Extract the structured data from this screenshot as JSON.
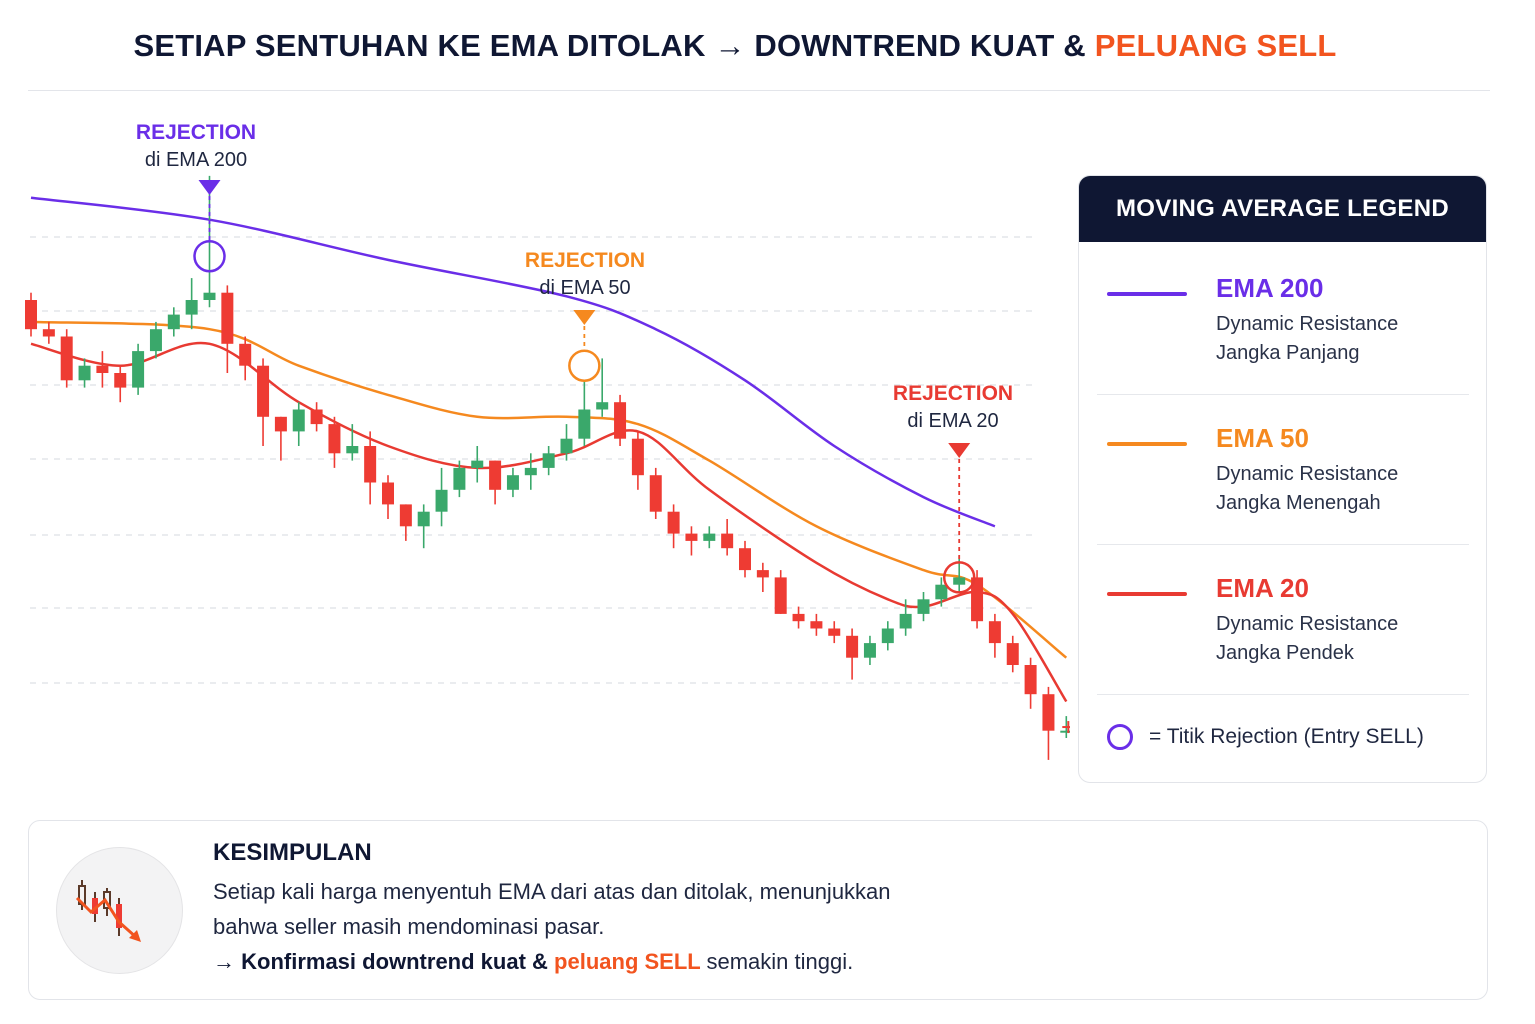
{
  "header": {
    "title_main": "SETIAP SENTUHAN KE EMA DITOLAK → DOWNTREND KUAT &",
    "title_accent": "PELUANG SELL"
  },
  "colors": {
    "ema200": "#6a2ee8",
    "ema50": "#f5891f",
    "ema20": "#e83a32",
    "bull": "#3aa86b",
    "bear": "#ee3b33",
    "accent": "#f2541f",
    "navy": "#0f1733"
  },
  "annotations": [
    {
      "head": "REJECTION",
      "sub": "di EMA 200",
      "color": "#6a2ee8"
    },
    {
      "head": "REJECTION",
      "sub": "di EMA 50",
      "color": "#f5891f"
    },
    {
      "head": "REJECTION",
      "sub": "di EMA 20",
      "color": "#e83a32"
    }
  ],
  "legend": {
    "title": "MOVING AVERAGE LEGEND",
    "items": [
      {
        "name": "EMA 200",
        "line1": "Dynamic Resistance",
        "line2": "Jangka Panjang",
        "color": "#6a2ee8"
      },
      {
        "name": "EMA 50",
        "line1": "Dynamic Resistance",
        "line2": "Jangka Menengah",
        "color": "#f5891f"
      },
      {
        "name": "EMA 20",
        "line1": "Dynamic Resistance",
        "line2": "Jangka Pendek",
        "color": "#e83a32"
      }
    ],
    "note": "= Titik Rejection (Entry SELL)"
  },
  "conclusion": {
    "title": "KESIMPULAN",
    "line1": "Setiap kali harga menyentuh EMA dari atas dan ditolak, menunjukkan",
    "line2": "bahwa seller masih mendominasi pasar.",
    "line3_prefix": "→ Konfirmasi downtrend kuat &",
    "line3_accent": "peluang SELL",
    "line3_suffix": "semakin tinggi."
  },
  "chart_data": {
    "type": "candlestick",
    "title": "",
    "grid": "horizontal dashed",
    "candles": [
      [
        100,
        96,
        101,
        95
      ],
      [
        96,
        95,
        97,
        94
      ],
      [
        95,
        89,
        96,
        88
      ],
      [
        89,
        91,
        92,
        88
      ],
      [
        91,
        90,
        93,
        88
      ],
      [
        90,
        88,
        91,
        86
      ],
      [
        88,
        93,
        94,
        87
      ],
      [
        93,
        96,
        97,
        92
      ],
      [
        96,
        98,
        99,
        95
      ],
      [
        98,
        100,
        103,
        96
      ],
      [
        100,
        101,
        117,
        99
      ],
      [
        101,
        94,
        102,
        90
      ],
      [
        94,
        91,
        95,
        89
      ],
      [
        91,
        84,
        92,
        80
      ],
      [
        84,
        82,
        84,
        78
      ],
      [
        82,
        85,
        86,
        80
      ],
      [
        85,
        83,
        86,
        82
      ],
      [
        83,
        79,
        84,
        77
      ],
      [
        79,
        80,
        83,
        78
      ],
      [
        80,
        75,
        82,
        72
      ],
      [
        75,
        72,
        76,
        70
      ],
      [
        72,
        69,
        72,
        67
      ],
      [
        69,
        71,
        72,
        66
      ],
      [
        71,
        74,
        77,
        69
      ],
      [
        74,
        77,
        78,
        73
      ],
      [
        77,
        78,
        80,
        75
      ],
      [
        78,
        74,
        78,
        72
      ],
      [
        74,
        76,
        77,
        73
      ],
      [
        76,
        77,
        79,
        74
      ],
      [
        77,
        79,
        80,
        76
      ],
      [
        79,
        81,
        83,
        78
      ],
      [
        81,
        85,
        89,
        80
      ],
      [
        85,
        86,
        92,
        84
      ],
      [
        86,
        81,
        87,
        80
      ],
      [
        81,
        76,
        82,
        74
      ],
      [
        76,
        71,
        77,
        70
      ],
      [
        71,
        68,
        72,
        66
      ],
      [
        68,
        67,
        69,
        65
      ],
      [
        67,
        68,
        69,
        66
      ],
      [
        68,
        66,
        70,
        65
      ],
      [
        66,
        63,
        67,
        62
      ],
      [
        63,
        62,
        64,
        60
      ],
      [
        62,
        57,
        63,
        57
      ],
      [
        57,
        56,
        58,
        55
      ],
      [
        56,
        55,
        57,
        54
      ],
      [
        55,
        54,
        56,
        53
      ],
      [
        54,
        51,
        55,
        48
      ],
      [
        51,
        53,
        54,
        50
      ],
      [
        53,
        55,
        56,
        52
      ],
      [
        55,
        57,
        59,
        54
      ],
      [
        57,
        59,
        60,
        56
      ],
      [
        59,
        61,
        62,
        58
      ],
      [
        61,
        62,
        65,
        60
      ],
      [
        62,
        56,
        63,
        55
      ],
      [
        56,
        53,
        57,
        51
      ],
      [
        53,
        50,
        54,
        49
      ],
      [
        50,
        46,
        51,
        44
      ],
      [
        46,
        41,
        47,
        37
      ],
      [
        41,
        41,
        43,
        40
      ]
    ],
    "ema200": [
      [
        0,
        114
      ],
      [
        10,
        111
      ],
      [
        20,
        105.5
      ],
      [
        30,
        100.5
      ],
      [
        35,
        96
      ],
      [
        40,
        89
      ],
      [
        45,
        80
      ],
      [
        50,
        73
      ],
      [
        54,
        69
      ]
    ],
    "ema50": [
      [
        0,
        97
      ],
      [
        10,
        96
      ],
      [
        15,
        91
      ],
      [
        20,
        87
      ],
      [
        25,
        84
      ],
      [
        30,
        84
      ],
      [
        34,
        83
      ],
      [
        38,
        78
      ],
      [
        44,
        69
      ],
      [
        50,
        63
      ],
      [
        53,
        61
      ],
      [
        58,
        51
      ]
    ],
    "ema20": [
      [
        0,
        94
      ],
      [
        5,
        91
      ],
      [
        10,
        94
      ],
      [
        15,
        86
      ],
      [
        20,
        80
      ],
      [
        25,
        77
      ],
      [
        30,
        79
      ],
      [
        34,
        82
      ],
      [
        38,
        74
      ],
      [
        44,
        64
      ],
      [
        48,
        59
      ],
      [
        50,
        58
      ],
      [
        53,
        60
      ],
      [
        55,
        57
      ],
      [
        58,
        45
      ]
    ],
    "rejections": [
      {
        "candle": 10,
        "price": 106,
        "ema": "EMA 200"
      },
      {
        "candle": 31,
        "price": 91,
        "ema": "EMA 50"
      },
      {
        "candle": 52,
        "price": 62,
        "ema": "EMA 20"
      }
    ]
  }
}
